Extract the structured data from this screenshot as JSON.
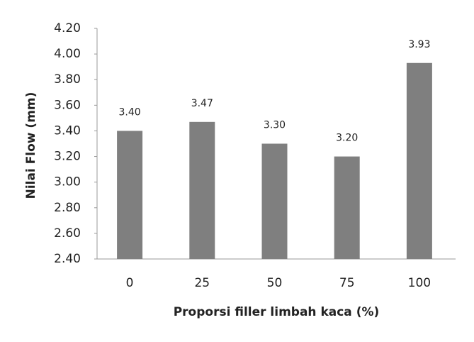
{
  "chart_data": {
    "type": "bar",
    "x_label": "Proporsi filler limbah kaca (%)",
    "y_label": "Nilai Flow (mm)",
    "categories": [
      "0",
      "25",
      "50",
      "75",
      "100"
    ],
    "values": [
      3.4,
      3.47,
      3.3,
      3.2,
      3.93
    ],
    "value_labels": [
      "3.40",
      "3.47",
      "3.30",
      "3.20",
      "3.93"
    ],
    "color": "#7f7f7f",
    "ylim": [
      2.4,
      4.2
    ],
    "yticks": [
      {
        "value": 2.4,
        "label": "2.40"
      },
      {
        "value": 2.6,
        "label": "2.60"
      },
      {
        "value": 2.8,
        "label": "2.80"
      },
      {
        "value": 3.0,
        "label": "3.00"
      },
      {
        "value": 3.2,
        "label": "3.20"
      },
      {
        "value": 3.4,
        "label": "3.40"
      },
      {
        "value": 3.6,
        "label": "3.60"
      },
      {
        "value": 3.8,
        "label": "3.80"
      },
      {
        "value": 4.0,
        "label": "4.00"
      },
      {
        "value": 4.2,
        "label": "4.20"
      }
    ],
    "grid": false
  }
}
